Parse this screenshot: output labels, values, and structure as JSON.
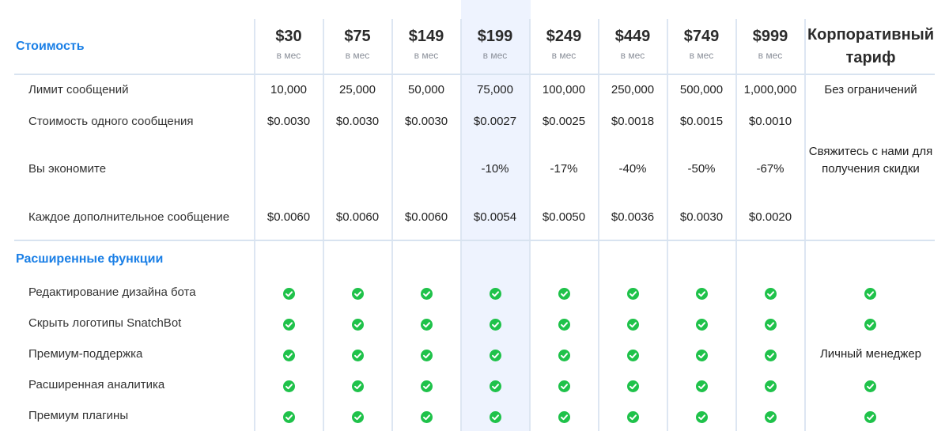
{
  "pricing": {
    "section_title": "Стоимость",
    "plans": [
      {
        "price": "$30",
        "per": "в мес"
      },
      {
        "price": "$75",
        "per": "в мес"
      },
      {
        "price": "$149",
        "per": "в мес"
      },
      {
        "price": "$199",
        "per": "в мес"
      },
      {
        "price": "$249",
        "per": "в мес"
      },
      {
        "price": "$449",
        "per": "в мес"
      },
      {
        "price": "$749",
        "per": "в мес"
      },
      {
        "price": "$999",
        "per": "в мес"
      }
    ],
    "enterprise_title": "Корпоративный тариф",
    "rows": [
      {
        "label": "Лимит сообщений",
        "values": [
          "10,000",
          "25,000",
          "50,000",
          "75,000",
          "100,000",
          "250,000",
          "500,000",
          "1,000,000"
        ],
        "enterprise": "Без ограничений"
      },
      {
        "label": "Стоимость одного сообщения",
        "values": [
          "$0.0030",
          "$0.0030",
          "$0.0030",
          "$0.0027",
          "$0.0025",
          "$0.0018",
          "$0.0015",
          "$0.0010"
        ]
      },
      {
        "label": "Вы экономите",
        "values": [
          "",
          "",
          "",
          "-10%",
          "-17%",
          "-40%",
          "-50%",
          "-67%"
        ]
      },
      {
        "label": "Каждое дополнительное сообщение",
        "values": [
          "$0.0060",
          "$0.0060",
          "$0.0060",
          "$0.0054",
          "$0.0050",
          "$0.0036",
          "$0.0030",
          "$0.0020"
        ]
      }
    ],
    "enterprise_discount_note": "Свяжитесь с нами для получения скидки"
  },
  "features": {
    "section_title": "Расширенные функции",
    "rows": [
      {
        "label": "Редактирование дизайна бота",
        "enterprise": ""
      },
      {
        "label": "Скрыть логотипы SnatchBot",
        "enterprise": ""
      },
      {
        "label": "Премиум-поддержка",
        "enterprise": "Личный менеджер"
      },
      {
        "label": "Расширенная аналитика",
        "enterprise": ""
      },
      {
        "label": "Премиум плагины",
        "enterprise": ""
      }
    ]
  },
  "colors": {
    "accent": "#1a7fe6",
    "check": "#1fc24a",
    "highlight_column": "#eef3fe"
  },
  "icons": {
    "feature_included": "check-circle-icon"
  }
}
